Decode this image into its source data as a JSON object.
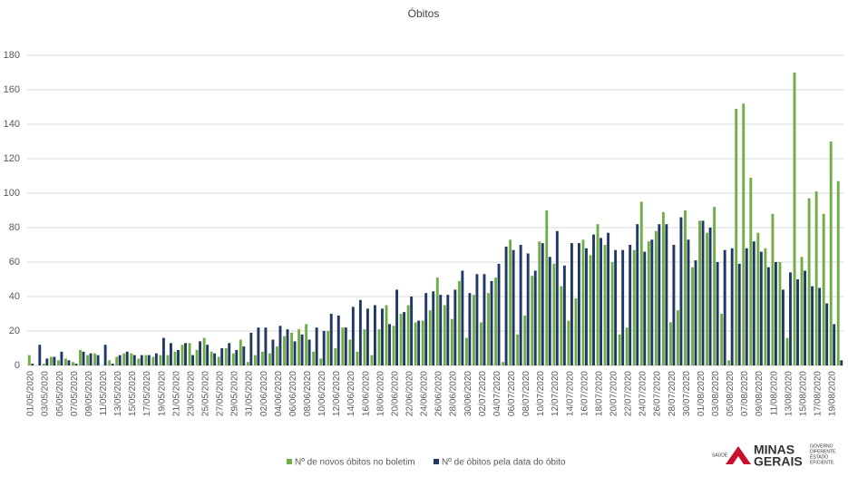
{
  "chart_data": {
    "type": "bar",
    "title": "Óbitos",
    "categories": [
      "01/05/2020",
      null,
      "03/05/2020",
      null,
      "05/05/2020",
      null,
      "07/05/2020",
      null,
      "09/05/2020",
      null,
      "11/05/2020",
      null,
      "13/05/2020",
      null,
      "15/05/2020",
      null,
      "17/05/2020",
      null,
      "19/05/2020",
      null,
      "21/05/2020",
      null,
      "23/05/2020",
      null,
      "25/05/2020",
      null,
      "27/05/2020",
      null,
      "29/05/2020",
      null,
      "31/05/2020",
      null,
      "02/06/2020",
      null,
      "04/06/2020",
      null,
      "06/06/2020",
      null,
      "08/06/2020",
      null,
      "10/06/2020",
      null,
      "12/06/2020",
      null,
      "14/06/2020",
      null,
      "16/06/2020",
      null,
      "18/06/2020",
      null,
      "20/06/2020",
      null,
      "22/06/2020",
      null,
      "24/06/2020",
      null,
      "26/06/2020",
      null,
      "28/06/2020",
      null,
      "30/06/2020",
      null,
      "02/07/2020",
      null,
      "04/07/2020",
      null,
      "06/07/2020",
      null,
      "08/07/2020",
      null,
      "10/07/2020",
      null,
      "12/07/2020",
      null,
      "14/07/2020",
      null,
      "16/07/2020",
      null,
      "18/07/2020",
      null,
      "20/07/2020",
      null,
      "22/07/2020",
      null,
      "24/07/2020",
      null,
      "26/07/2020",
      null,
      "28/07/2020",
      null,
      "30/07/2020",
      null,
      "01/08/2020",
      null,
      "03/08/2020",
      null,
      "05/08/2020",
      null,
      "07/08/2020",
      null,
      "09/08/2020",
      null,
      "11/08/2020",
      null,
      "13/08/2020",
      null,
      "15/08/2020",
      null,
      "17/08/2020",
      null,
      "19/08/2020",
      null
    ],
    "series": [
      {
        "name": "Nº de novos óbitos no boletim",
        "color": "#70ad47",
        "values": [
          6,
          0,
          1,
          5,
          3,
          4,
          2,
          9,
          6,
          7,
          0,
          3,
          5,
          7,
          7,
          4,
          6,
          5,
          6,
          6,
          8,
          12,
          13,
          9,
          16,
          8,
          5,
          10,
          7,
          15,
          2,
          6,
          8,
          7,
          11,
          17,
          19,
          21,
          24,
          8,
          4,
          20,
          10,
          22,
          15,
          8,
          21,
          6,
          21,
          35,
          23,
          30,
          35,
          25,
          26,
          32,
          51,
          35,
          27,
          49,
          16,
          41,
          25,
          42,
          51,
          2,
          73,
          18,
          29,
          52,
          72,
          90,
          59,
          46,
          26,
          39,
          73,
          64,
          82,
          70,
          60,
          18,
          22,
          67,
          95,
          72,
          78,
          89,
          25,
          32,
          90,
          57,
          84,
          77,
          92,
          30,
          3,
          149,
          152,
          109,
          77,
          68,
          88,
          60,
          16,
          170,
          63,
          97,
          101,
          88,
          130,
          107
        ]
      },
      {
        "name": "Nº de óbitos pela data do óbito",
        "color": "#1f3864",
        "values": [
          1,
          12,
          4,
          5,
          8,
          3,
          1,
          8,
          7,
          6,
          12,
          1,
          6,
          8,
          6,
          6,
          6,
          7,
          16,
          13,
          9,
          13,
          6,
          14,
          12,
          7,
          10,
          13,
          9,
          11,
          19,
          22,
          22,
          15,
          23,
          21,
          14,
          18,
          15,
          22,
          20,
          30,
          29,
          22,
          34,
          38,
          33,
          35,
          33,
          24,
          44,
          31,
          40,
          26,
          42,
          43,
          41,
          41,
          44,
          55,
          42,
          53,
          53,
          49,
          59,
          69,
          67,
          70,
          65,
          55,
          71,
          63,
          78,
          58,
          71,
          71,
          68,
          76,
          74,
          77,
          67,
          67,
          70,
          82,
          66,
          73,
          82,
          82,
          70,
          86,
          73,
          61,
          84,
          80,
          60,
          67,
          68,
          59,
          68,
          72,
          66,
          57,
          60,
          44,
          54,
          50,
          55,
          46,
          45,
          36,
          24,
          3
        ]
      }
    ],
    "ylim": [
      0,
      180
    ],
    "yticks": [
      0,
      20,
      40,
      60,
      80,
      100,
      120,
      140,
      160,
      180
    ],
    "grid": true
  },
  "logo": {
    "department": "SAÚDE",
    "name_line1": "MINAS",
    "name_line2": "GERAIS",
    "tagline1": "GOVERNO",
    "tagline2": "DIFERENTE.",
    "tagline3": "ESTADO",
    "tagline4": "EFICIENTE."
  }
}
